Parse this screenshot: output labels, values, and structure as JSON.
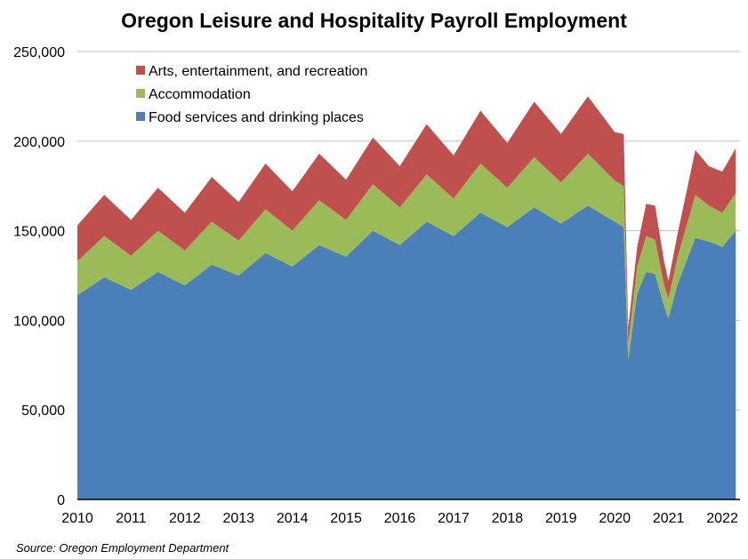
{
  "chart_data": {
    "type": "area",
    "stacked": true,
    "title": "Oregon Leisure and Hospitality Payroll Employment",
    "source": "Source: Oregon Employment Department",
    "xlabel": "",
    "ylabel": "",
    "ylim": [
      0,
      250000
    ],
    "yticks": [
      0,
      50000,
      100000,
      150000,
      200000,
      250000
    ],
    "ytick_labels": [
      "0",
      "50,000",
      "100,000",
      "150,000",
      "200,000",
      "250,000"
    ],
    "xticks": [
      2010,
      2011,
      2012,
      2013,
      2014,
      2015,
      2016,
      2017,
      2018,
      2019,
      2020,
      2021,
      2022
    ],
    "xtick_labels": [
      "2010",
      "2011",
      "2012",
      "2013",
      "2014",
      "2015",
      "2016",
      "2017",
      "2018",
      "2019",
      "2020",
      "2021",
      "2022"
    ],
    "grid": "horizontal",
    "legend_position": "top-left",
    "series": [
      {
        "name": "Food services and drinking places",
        "color": "#4a7fba",
        "points": [
          [
            "2010-01",
            114000
          ],
          [
            "2010-07",
            124000
          ],
          [
            "2011-01",
            117000
          ],
          [
            "2011-07",
            127000
          ],
          [
            "2012-01",
            119500
          ],
          [
            "2012-07",
            131000
          ],
          [
            "2013-01",
            125000
          ],
          [
            "2013-07",
            137500
          ],
          [
            "2014-01",
            130000
          ],
          [
            "2014-07",
            142000
          ],
          [
            "2015-01",
            135500
          ],
          [
            "2015-07",
            150000
          ],
          [
            "2016-01",
            142000
          ],
          [
            "2016-07",
            155000
          ],
          [
            "2017-01",
            147000
          ],
          [
            "2017-07",
            160000
          ],
          [
            "2018-01",
            152000
          ],
          [
            "2018-07",
            163000
          ],
          [
            "2019-01",
            154000
          ],
          [
            "2019-07",
            164000
          ],
          [
            "2020-01",
            155000
          ],
          [
            "2020-03",
            152000
          ],
          [
            "2020-04",
            78000
          ],
          [
            "2020-06",
            115000
          ],
          [
            "2020-08",
            127000
          ],
          [
            "2020-10",
            126000
          ],
          [
            "2020-12",
            108000
          ],
          [
            "2021-01",
            101000
          ],
          [
            "2021-03",
            120000
          ],
          [
            "2021-07",
            146000
          ],
          [
            "2021-10",
            144000
          ],
          [
            "2022-01",
            141000
          ],
          [
            "2022-04",
            150000
          ]
        ]
      },
      {
        "name": "Accommodation",
        "color": "#9bbb59",
        "points": [
          [
            "2010-01",
            19000
          ],
          [
            "2010-07",
            23000
          ],
          [
            "2011-01",
            19000
          ],
          [
            "2011-07",
            23000
          ],
          [
            "2012-01",
            19500
          ],
          [
            "2012-07",
            24000
          ],
          [
            "2013-01",
            19500
          ],
          [
            "2013-07",
            24500
          ],
          [
            "2014-01",
            20000
          ],
          [
            "2014-07",
            25000
          ],
          [
            "2015-01",
            20500
          ],
          [
            "2015-07",
            26000
          ],
          [
            "2016-01",
            21000
          ],
          [
            "2016-07",
            26500
          ],
          [
            "2017-01",
            21000
          ],
          [
            "2017-07",
            27500
          ],
          [
            "2018-01",
            22000
          ],
          [
            "2018-07",
            28000
          ],
          [
            "2019-01",
            23000
          ],
          [
            "2019-07",
            29000
          ],
          [
            "2020-01",
            23000
          ],
          [
            "2020-03",
            23000
          ],
          [
            "2020-04",
            9000
          ],
          [
            "2020-06",
            15000
          ],
          [
            "2020-08",
            20000
          ],
          [
            "2020-10",
            19000
          ],
          [
            "2020-12",
            12000
          ],
          [
            "2021-01",
            11000
          ],
          [
            "2021-03",
            15000
          ],
          [
            "2021-07",
            24000
          ],
          [
            "2021-10",
            20000
          ],
          [
            "2022-01",
            19000
          ],
          [
            "2022-04",
            21000
          ]
        ]
      },
      {
        "name": "Arts, entertainment, and recreation",
        "color": "#c0504d",
        "points": [
          [
            "2010-01",
            20000
          ],
          [
            "2010-07",
            23000
          ],
          [
            "2011-01",
            20000
          ],
          [
            "2011-07",
            24000
          ],
          [
            "2012-01",
            21000
          ],
          [
            "2012-07",
            25000
          ],
          [
            "2013-01",
            21500
          ],
          [
            "2013-07",
            25500
          ],
          [
            "2014-01",
            22000
          ],
          [
            "2014-07",
            26000
          ],
          [
            "2015-01",
            22500
          ],
          [
            "2015-07",
            26000
          ],
          [
            "2016-01",
            23000
          ],
          [
            "2016-07",
            28000
          ],
          [
            "2017-01",
            24000
          ],
          [
            "2017-07",
            29500
          ],
          [
            "2018-01",
            25000
          ],
          [
            "2018-07",
            31000
          ],
          [
            "2019-01",
            27000
          ],
          [
            "2019-07",
            32000
          ],
          [
            "2020-01",
            27000
          ],
          [
            "2020-03",
            29000
          ],
          [
            "2020-04",
            9000
          ],
          [
            "2020-06",
            11000
          ],
          [
            "2020-08",
            18000
          ],
          [
            "2020-10",
            19000
          ],
          [
            "2020-12",
            13000
          ],
          [
            "2021-01",
            10000
          ],
          [
            "2021-03",
            13000
          ],
          [
            "2021-07",
            25000
          ],
          [
            "2021-10",
            22000
          ],
          [
            "2022-01",
            23000
          ],
          [
            "2022-04",
            25000
          ]
        ]
      }
    ]
  }
}
